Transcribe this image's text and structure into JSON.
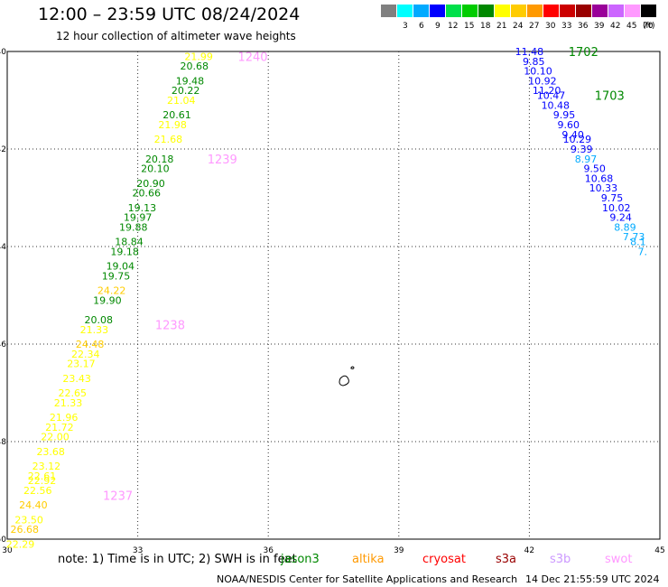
{
  "header": {
    "title": "12:00 – 23:59 UTC 08/24/2024",
    "subtitle": "12 hour collection of altimeter wave heights"
  },
  "legend": {
    "unit": "(ft)",
    "items": [
      {
        "label": "",
        "color": "#808080"
      },
      {
        "label": "3",
        "color": "#00ffff"
      },
      {
        "label": "6",
        "color": "#00aaff"
      },
      {
        "label": "9",
        "color": "#0000ff"
      },
      {
        "label": "12",
        "color": "#00e04a"
      },
      {
        "label": "15",
        "color": "#00cc00"
      },
      {
        "label": "18",
        "color": "#008800"
      },
      {
        "label": "21",
        "color": "#ffff00"
      },
      {
        "label": "24",
        "color": "#ffcc00"
      },
      {
        "label": "27",
        "color": "#ff9900"
      },
      {
        "label": "30",
        "color": "#ff0000"
      },
      {
        "label": "33",
        "color": "#cc0000"
      },
      {
        "label": "36",
        "color": "#990000"
      },
      {
        "label": "39",
        "color": "#990099"
      },
      {
        "label": "42",
        "color": "#cc66ff"
      },
      {
        "label": "45",
        "color": "#ff99ff"
      },
      {
        "label": "70",
        "color": "#000000"
      }
    ]
  },
  "axes": {
    "x_ticks": [
      "30",
      "33",
      "36",
      "39",
      "42",
      "45"
    ],
    "y_ticks": [
      "-40",
      "-42",
      "-44",
      "-46",
      "-48",
      "-50"
    ]
  },
  "map_data": {
    "lon_range": [
      30,
      45
    ],
    "lat_range": [
      -50,
      -40
    ],
    "pass_labels": [
      {
        "id": "1240",
        "lon": 35.3,
        "lat": -40.1,
        "color": "#ff99ff"
      },
      {
        "id": "1239",
        "lon": 34.6,
        "lat": -42.2,
        "color": "#ff99ff"
      },
      {
        "id": "1238",
        "lon": 33.4,
        "lat": -45.6,
        "color": "#ff99ff"
      },
      {
        "id": "1237",
        "lon": 32.2,
        "lat": -49.1,
        "color": "#ff99ff"
      },
      {
        "id": "1702",
        "lon": 42.9,
        "lat": -40.0,
        "color": "#008800"
      },
      {
        "id": "1703",
        "lon": 43.5,
        "lat": -40.9,
        "color": "#008800"
      }
    ],
    "track_west": [
      {
        "v": "21.99",
        "lon": 34.4,
        "lat": -40.1,
        "color": "#ffff00"
      },
      {
        "v": "20.68",
        "lon": 34.3,
        "lat": -40.3,
        "color": "#008800"
      },
      {
        "v": "19.48",
        "lon": 34.2,
        "lat": -40.6,
        "color": "#008800"
      },
      {
        "v": "20.22",
        "lon": 34.1,
        "lat": -40.8,
        "color": "#008800"
      },
      {
        "v": "21.04",
        "lon": 34.0,
        "lat": -41.0,
        "color": "#ffff00"
      },
      {
        "v": "20.61",
        "lon": 33.9,
        "lat": -41.3,
        "color": "#008800"
      },
      {
        "v": "21.98",
        "lon": 33.8,
        "lat": -41.5,
        "color": "#ffff00"
      },
      {
        "v": "21.68",
        "lon": 33.7,
        "lat": -41.8,
        "color": "#ffff00"
      },
      {
        "v": "20.18",
        "lon": 33.5,
        "lat": -42.2,
        "color": "#008800"
      },
      {
        "v": "20.10",
        "lon": 33.4,
        "lat": -42.4,
        "color": "#008800"
      },
      {
        "v": "20.90",
        "lon": 33.3,
        "lat": -42.7,
        "color": "#008800"
      },
      {
        "v": "20.66",
        "lon": 33.2,
        "lat": -42.9,
        "color": "#008800"
      },
      {
        "v": "19.13",
        "lon": 33.1,
        "lat": -43.2,
        "color": "#008800"
      },
      {
        "v": "19.97",
        "lon": 33.0,
        "lat": -43.4,
        "color": "#008800"
      },
      {
        "v": "19.88",
        "lon": 32.9,
        "lat": -43.6,
        "color": "#008800"
      },
      {
        "v": "18.84",
        "lon": 32.8,
        "lat": -43.9,
        "color": "#008800"
      },
      {
        "v": "19.18",
        "lon": 32.7,
        "lat": -44.1,
        "color": "#008800"
      },
      {
        "v": "19.04",
        "lon": 32.6,
        "lat": -44.4,
        "color": "#008800"
      },
      {
        "v": "19.75",
        "lon": 32.5,
        "lat": -44.6,
        "color": "#008800"
      },
      {
        "v": "24.22",
        "lon": 32.4,
        "lat": -44.9,
        "color": "#ffcc00"
      },
      {
        "v": "19.90",
        "lon": 32.3,
        "lat": -45.1,
        "color": "#008800"
      },
      {
        "v": "20.08",
        "lon": 32.1,
        "lat": -45.5,
        "color": "#008800"
      },
      {
        "v": "21.33",
        "lon": 32.0,
        "lat": -45.7,
        "color": "#ffff00"
      },
      {
        "v": "24.48",
        "lon": 31.9,
        "lat": -46.0,
        "color": "#ffcc00"
      },
      {
        "v": "22.34",
        "lon": 31.8,
        "lat": -46.2,
        "color": "#ffff00"
      },
      {
        "v": "23.17",
        "lon": 31.7,
        "lat": -46.4,
        "color": "#ffff00"
      },
      {
        "v": "23.43",
        "lon": 31.6,
        "lat": -46.7,
        "color": "#ffff00"
      },
      {
        "v": "22.65",
        "lon": 31.5,
        "lat": -47.0,
        "color": "#ffff00"
      },
      {
        "v": "21.33",
        "lon": 31.4,
        "lat": -47.2,
        "color": "#ffff00"
      },
      {
        "v": "21.96",
        "lon": 31.3,
        "lat": -47.5,
        "color": "#ffff00"
      },
      {
        "v": "21.72",
        "lon": 31.2,
        "lat": -47.7,
        "color": "#ffff00"
      },
      {
        "v": "22.00",
        "lon": 31.1,
        "lat": -47.9,
        "color": "#ffff00"
      },
      {
        "v": "23.68",
        "lon": 31.0,
        "lat": -48.2,
        "color": "#ffff00"
      },
      {
        "v": "23.12",
        "lon": 30.9,
        "lat": -48.5,
        "color": "#ffff00"
      },
      {
        "v": "22.61",
        "lon": 30.8,
        "lat": -48.7,
        "color": "#ffff00"
      },
      {
        "v": "22.92",
        "lon": 30.8,
        "lat": -48.8,
        "color": "#ffff00"
      },
      {
        "v": "22.56",
        "lon": 30.7,
        "lat": -49.0,
        "color": "#ffff00"
      },
      {
        "v": "24.40",
        "lon": 30.6,
        "lat": -49.3,
        "color": "#ffcc00"
      },
      {
        "v": "23.50",
        "lon": 30.5,
        "lat": -49.6,
        "color": "#ffff00"
      },
      {
        "v": "26.68",
        "lon": 30.4,
        "lat": -49.8,
        "color": "#ffcc00"
      },
      {
        "v": "22.29",
        "lon": 30.3,
        "lat": -50.1,
        "color": "#ffff00"
      }
    ],
    "track_east": [
      {
        "v": "11.48",
        "lon": 42.0,
        "lat": -40.0,
        "color": "#0000ff"
      },
      {
        "v": "9.85",
        "lon": 42.1,
        "lat": -40.2,
        "color": "#0000ff"
      },
      {
        "v": "10.10",
        "lon": 42.2,
        "lat": -40.4,
        "color": "#0000ff"
      },
      {
        "v": "10.92",
        "lon": 42.3,
        "lat": -40.6,
        "color": "#0000ff"
      },
      {
        "v": "11.20",
        "lon": 42.4,
        "lat": -40.8,
        "color": "#0000ff"
      },
      {
        "v": "10.47",
        "lon": 42.5,
        "lat": -40.9,
        "color": "#0000ff"
      },
      {
        "v": "10.48",
        "lon": 42.6,
        "lat": -41.1,
        "color": "#0000ff"
      },
      {
        "v": "9.95",
        "lon": 42.8,
        "lat": -41.3,
        "color": "#0000ff"
      },
      {
        "v": "9.60",
        "lon": 42.9,
        "lat": -41.5,
        "color": "#0000ff"
      },
      {
        "v": "9.40",
        "lon": 43.0,
        "lat": -41.7,
        "color": "#0000ff"
      },
      {
        "v": "10.29",
        "lon": 43.1,
        "lat": -41.8,
        "color": "#0000ff"
      },
      {
        "v": "9.39",
        "lon": 43.2,
        "lat": -42.0,
        "color": "#0000ff"
      },
      {
        "v": "8.97",
        "lon": 43.3,
        "lat": -42.2,
        "color": "#00aaff"
      },
      {
        "v": "9.50",
        "lon": 43.5,
        "lat": -42.4,
        "color": "#0000ff"
      },
      {
        "v": "10.68",
        "lon": 43.6,
        "lat": -42.6,
        "color": "#0000ff"
      },
      {
        "v": "10.33",
        "lon": 43.7,
        "lat": -42.8,
        "color": "#0000ff"
      },
      {
        "v": "9.75",
        "lon": 43.9,
        "lat": -43.0,
        "color": "#0000ff"
      },
      {
        "v": "10.02",
        "lon": 44.0,
        "lat": -43.2,
        "color": "#0000ff"
      },
      {
        "v": "9.24",
        "lon": 44.1,
        "lat": -43.4,
        "color": "#0000ff"
      },
      {
        "v": "8.89",
        "lon": 44.2,
        "lat": -43.6,
        "color": "#00aaff"
      },
      {
        "v": "7.73",
        "lon": 44.4,
        "lat": -43.8,
        "color": "#00aaff"
      },
      {
        "v": "8.1",
        "lon": 44.5,
        "lat": -43.9,
        "color": "#00aaff"
      },
      {
        "v": "7.",
        "lon": 44.6,
        "lat": -44.1,
        "color": "#00aaff"
      }
    ]
  },
  "note": "note:  1) Time is in UTC;  2) SWH is in feet",
  "satellites": [
    {
      "name": "jason3",
      "color": "#008800"
    },
    {
      "name": "altika",
      "color": "#ff9900"
    },
    {
      "name": "cryosat",
      "color": "#ff0000"
    },
    {
      "name": "s3a",
      "color": "#990000"
    },
    {
      "name": "s3b",
      "color": "#cc99ff"
    },
    {
      "name": "swot",
      "color": "#ff99ff"
    }
  ],
  "footer": {
    "credit": "NOAA/NESDIS Center for Satellite Applications and Research",
    "timestamp": "14 Dec 21:55:59 UTC 2024"
  }
}
